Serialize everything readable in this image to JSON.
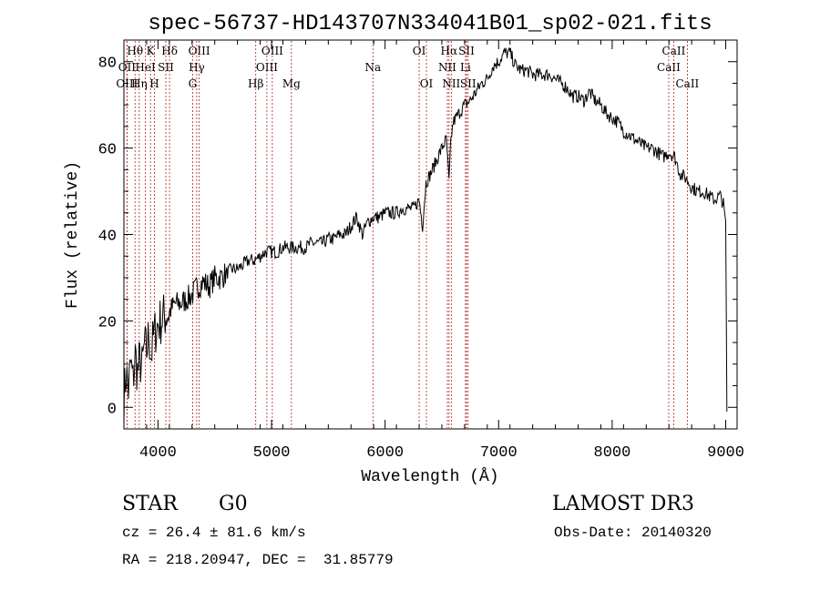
{
  "chart_data": {
    "type": "line",
    "title": "spec-56737-HD143707N334041B01_sp02-021.fits",
    "xlabel": "Wavelength (Å)",
    "ylabel": "Flux (relative)",
    "xlim": [
      3700,
      9100
    ],
    "ylim": [
      -5,
      85
    ],
    "xticks": [
      4000,
      5000,
      6000,
      7000,
      8000,
      9000
    ],
    "yticks": [
      0,
      20,
      40,
      60,
      80
    ],
    "grid": false,
    "series": [
      {
        "name": "flux",
        "x": [
          3700,
          3720,
          3740,
          3760,
          3780,
          3800,
          3820,
          3840,
          3860,
          3880,
          3900,
          3920,
          3940,
          3960,
          3980,
          4000,
          4050,
          4100,
          4150,
          4200,
          4250,
          4300,
          4350,
          4400,
          4450,
          4500,
          4550,
          4600,
          4650,
          4700,
          4750,
          4800,
          4850,
          4900,
          4950,
          5000,
          5050,
          5100,
          5150,
          5200,
          5250,
          5300,
          5350,
          5400,
          5450,
          5500,
          5550,
          5600,
          5650,
          5700,
          5750,
          5800,
          5850,
          5900,
          5950,
          6000,
          6050,
          6100,
          6150,
          6200,
          6250,
          6300,
          6330,
          6360,
          6400,
          6450,
          6500,
          6540,
          6563,
          6580,
          6600,
          6650,
          6700,
          6750,
          6800,
          6850,
          6900,
          6950,
          7000,
          7050,
          7100,
          7150,
          7200,
          7250,
          7300,
          7350,
          7400,
          7450,
          7500,
          7550,
          7600,
          7650,
          7700,
          7750,
          7800,
          7850,
          7900,
          7950,
          8000,
          8050,
          8100,
          8150,
          8200,
          8250,
          8300,
          8350,
          8400,
          8450,
          8500,
          8550,
          8600,
          8650,
          8700,
          8750,
          8800,
          8850,
          8900,
          8950,
          8980,
          9000,
          9010
        ],
        "y": [
          2,
          8,
          4,
          10,
          6,
          12,
          8,
          11,
          9,
          14,
          13,
          17,
          12,
          16,
          18,
          19,
          21,
          22,
          24,
          24,
          25,
          26,
          28,
          29,
          28,
          30,
          30,
          31,
          32,
          32,
          33,
          34,
          34,
          35,
          36,
          36,
          36,
          37,
          37,
          37,
          37,
          37,
          38,
          38,
          38,
          39,
          39,
          40,
          40,
          42,
          44,
          40,
          43,
          44,
          44,
          45,
          45,
          45,
          46,
          46,
          46,
          48,
          42,
          52,
          54,
          57,
          60,
          62,
          52,
          62,
          66,
          68,
          70,
          71,
          73,
          75,
          76,
          79,
          80,
          82,
          82,
          79,
          78,
          78,
          77,
          77,
          77,
          77,
          76,
          75,
          74,
          72,
          72,
          71,
          73,
          71,
          70,
          68,
          67,
          66,
          64,
          63,
          62,
          61,
          60,
          60,
          59,
          58,
          59,
          58,
          54,
          53,
          51,
          50,
          50,
          49,
          48,
          49,
          47,
          42,
          -1
        ]
      }
    ],
    "spectral_lines": [
      {
        "label": "Hθ",
        "wavelength": 3798,
        "row": 1
      },
      {
        "label": "OII",
        "wavelength": 3727,
        "row": 2
      },
      {
        "label": "OIII",
        "wavelength": 3727,
        "row": 3
      },
      {
        "label": "Hη",
        "wavelength": 3835,
        "row": 3
      },
      {
        "label": "HeI",
        "wavelength": 3889,
        "row": 2
      },
      {
        "label": "K",
        "wavelength": 3934,
        "row": 1
      },
      {
        "label": "SII",
        "wavelength": 4069,
        "row": 2
      },
      {
        "label": "H",
        "wavelength": 3969,
        "row": 3
      },
      {
        "label": "Hδ",
        "wavelength": 4102,
        "row": 1
      },
      {
        "label": "OIII",
        "wavelength": 4363,
        "row": 1
      },
      {
        "label": "Hγ",
        "wavelength": 4341,
        "row": 2
      },
      {
        "label": "G",
        "wavelength": 4305,
        "row": 3
      },
      {
        "label": "Hβ",
        "wavelength": 4861,
        "row": 3
      },
      {
        "label": "OIII",
        "wavelength": 5007,
        "row": 1
      },
      {
        "label": "OIII",
        "wavelength": 4959,
        "row": 2
      },
      {
        "label": "Mg",
        "wavelength": 5175,
        "row": 3
      },
      {
        "label": "Na",
        "wavelength": 5893,
        "row": 2
      },
      {
        "label": "OI",
        "wavelength": 6300,
        "row": 1
      },
      {
        "label": "OI",
        "wavelength": 6364,
        "row": 3
      },
      {
        "label": "Hα",
        "wavelength": 6563,
        "row": 1
      },
      {
        "label": "NII",
        "wavelength": 6548,
        "row": 2
      },
      {
        "label": "NII",
        "wavelength": 6583,
        "row": 3
      },
      {
        "label": "SII",
        "wavelength": 6717,
        "row": 1
      },
      {
        "label": "Li",
        "wavelength": 6708,
        "row": 2
      },
      {
        "label": "SII",
        "wavelength": 6731,
        "row": 3
      },
      {
        "label": "CaII",
        "wavelength": 8542,
        "row": 1
      },
      {
        "label": "CaII",
        "wavelength": 8498,
        "row": 2
      },
      {
        "label": "CaII",
        "wavelength": 8662,
        "row": 3
      }
    ],
    "line_color": "#b22222"
  },
  "info": {
    "object_class": "STAR",
    "subclass": "G0",
    "survey": "LAMOST DR3",
    "cz": "cz = 26.4 ± 81.6 km/s",
    "obs_date": "Obs-Date: 20140320",
    "coords": "RA = 218.20947, DEC =  31.85779"
  }
}
